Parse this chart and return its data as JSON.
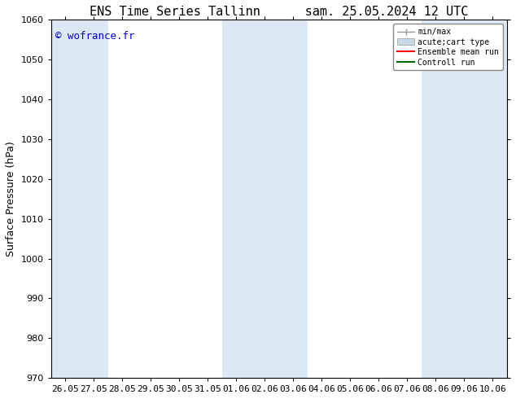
{
  "title_left": "ENS Time Series Tallinn",
  "title_right": "sam. 25.05.2024 12 UTC",
  "ylabel": "Surface Pressure (hPa)",
  "ylim": [
    970,
    1060
  ],
  "yticks": [
    970,
    980,
    990,
    1000,
    1010,
    1020,
    1030,
    1040,
    1050,
    1060
  ],
  "xtick_labels": [
    "26.05",
    "27.05",
    "28.05",
    "29.05",
    "30.05",
    "31.05",
    "01.06",
    "02.06",
    "03.06",
    "04.06",
    "05.06",
    "06.06",
    "07.06",
    "08.06",
    "09.06",
    "10.06"
  ],
  "watermark": "© wofrance.fr",
  "watermark_color": "#0000cc",
  "bg_color": "#ffffff",
  "plot_bg_color": "#ffffff",
  "shade_color": "#dce9f5",
  "shaded_ranges": [
    [
      0,
      1
    ],
    [
      6,
      8
    ],
    [
      13,
      15
    ]
  ],
  "legend_labels": [
    "min/max",
    "acute;cart type",
    "Ensemble mean run",
    "Controll run"
  ],
  "legend_line_colors": [
    "#aaaaaa",
    "#c8daea",
    "#ff0000",
    "#006600"
  ],
  "title_fontsize": 11,
  "label_fontsize": 9,
  "tick_fontsize": 8,
  "watermark_fontsize": 9
}
